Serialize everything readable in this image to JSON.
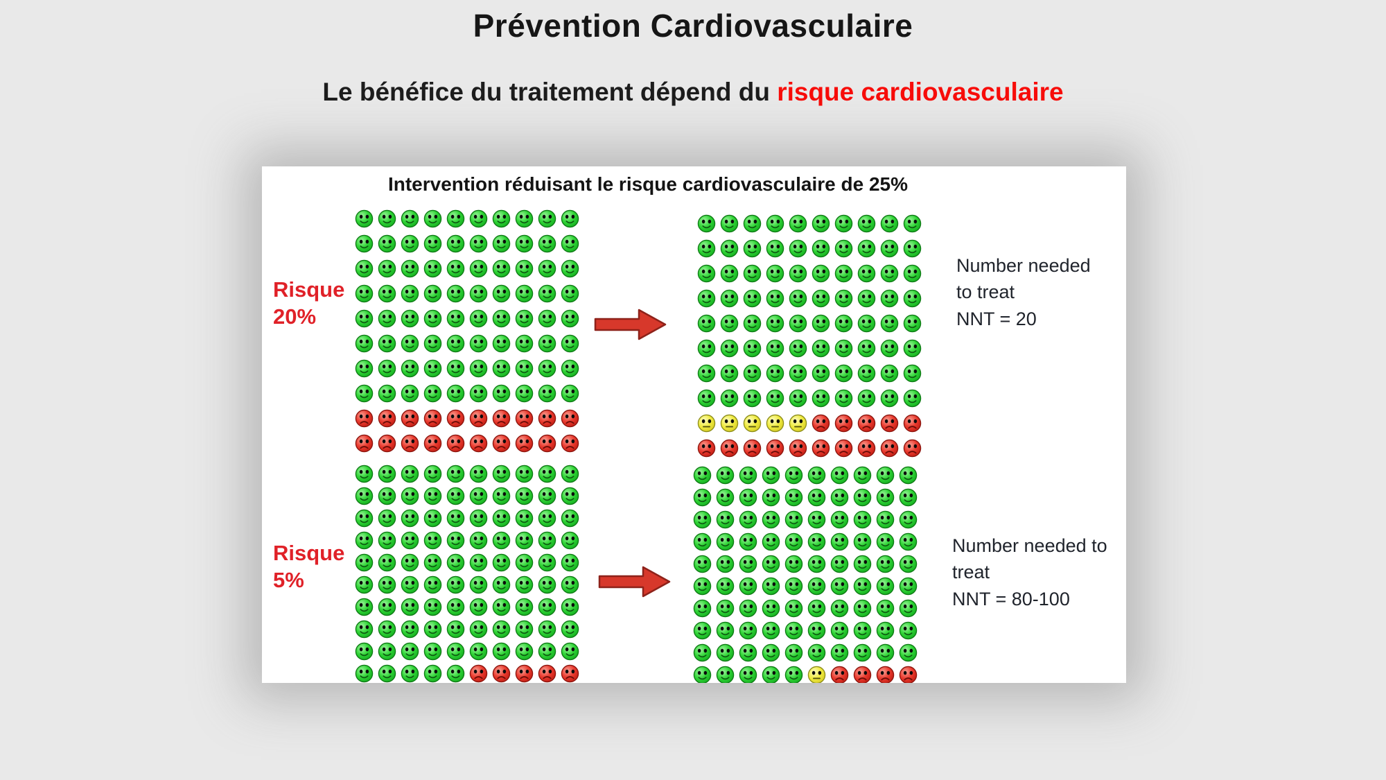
{
  "page": {
    "title": "Prévention Cardiovasculaire",
    "subtitle": {
      "black": "Le bénéfice du traitement dépend du ",
      "red": "risque cardiovasculaire"
    }
  },
  "panel": {
    "header": "Intervention réduisant le risque cardiovasculaire de 25%",
    "sections": [
      {
        "risk_label": [
          "Risque",
          "20%"
        ],
        "nnt_lines": [
          "Number needed",
          "to treat",
          "NNT = 20"
        ]
      },
      {
        "risk_label": [
          "Risque",
          "5%"
        ],
        "nnt_lines": [
          "Number needed to",
          "treat",
          "NNT = 80-100"
        ]
      }
    ]
  },
  "grids": {
    "risk20_before": [
      "gggggggggg",
      "gggggggggg",
      "gggggggggg",
      "gggggggggg",
      "gggggggggg",
      "gggggggggg",
      "gggggggggg",
      "gggggggggg",
      "rrrrrrrrrr",
      "rrrrrrrrrr"
    ],
    "risk20_after": [
      "gggggggggg",
      "gggggggggg",
      "gggggggggg",
      "gggggggggg",
      "gggggggggg",
      "gggggggggg",
      "gggggggggg",
      "gggggggggg",
      "yyyyyrrrrr",
      "rrrrrrrrrr"
    ],
    "risk5_before": [
      "gggggggggg",
      "gggggggggg",
      "gggggggggg",
      "gggggggggg",
      "gggggggggg",
      "gggggggggg",
      "gggggggggg",
      "gggggggggg",
      "gggggggggg",
      "gggggrrrrr"
    ],
    "risk5_after": [
      "gggggggggg",
      "gggggggggg",
      "gggggggggg",
      "gggggggggg",
      "gggggggggg",
      "gggggggggg",
      "gggggggggg",
      "gggggggggg",
      "gggggggggg",
      "gggggyrrrr"
    ]
  },
  "colors": {
    "subtitle_red": "#f80d0a",
    "risk_label_red": "#e02128",
    "green_face": "#2fd435",
    "red_face": "#ea3a2e",
    "yellow_face": "#f0eb40",
    "arrow_red": "#d7382b",
    "panel_bg": "#ffffff",
    "page_bg": "#e9e9e9"
  },
  "chart_data": [
    {
      "type": "icon-array",
      "title": "Intervention réduisant le risque cardiovasculaire de 25%",
      "scenario": "Risque 20%",
      "population": 100,
      "grid_shape": "10x10",
      "before": {
        "green_happy": 80,
        "red_sad": 20
      },
      "after": {
        "green_happy": 80,
        "yellow_neutral": 5,
        "red_sad": 15
      },
      "annotation": "Number needed to treat NNT = 20"
    },
    {
      "type": "icon-array",
      "title": "Intervention réduisant le risque cardiovasculaire de 25%",
      "scenario": "Risque 5%",
      "population": 100,
      "grid_shape": "10x10",
      "before": {
        "green_happy": 95,
        "red_sad": 5
      },
      "after": {
        "green_happy": 95,
        "yellow_neutral": 1,
        "red_sad": 4
      },
      "annotation": "Number needed to treat NNT = 80-100"
    }
  ]
}
